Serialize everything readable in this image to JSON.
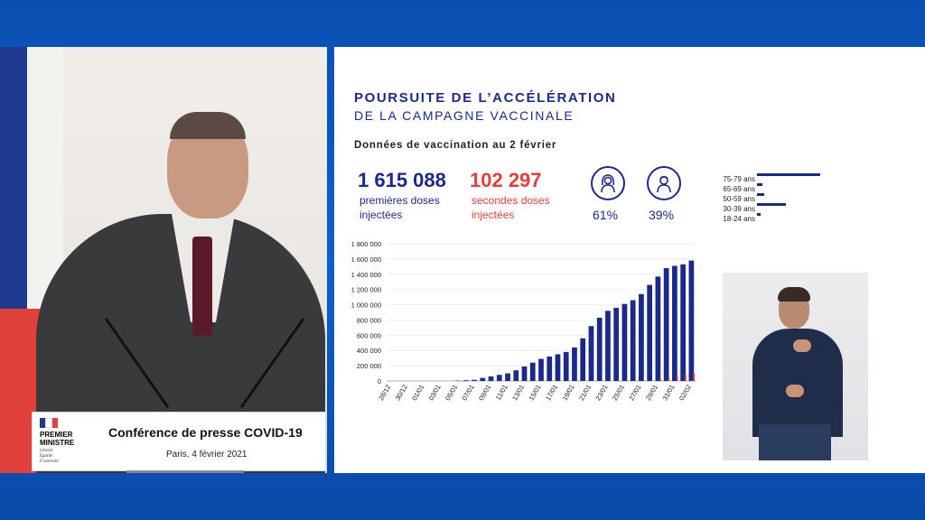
{
  "left_panel": {
    "logo": {
      "line1": "PREMIER",
      "line2": "MINISTRE",
      "motto1": "Liberté",
      "motto2": "Égalité",
      "motto3": "Fraternité"
    },
    "sign_title": "Conférence de presse COVID-19",
    "sign_subtitle": "Paris, 4 février 2021"
  },
  "slide": {
    "title_line1": "POURSUITE DE L’ACCÉLÉRATION",
    "title_line2": "DE LA CAMPAGNE VACCINALE",
    "subtitle": "Données de vaccination au 2 février",
    "first_doses": {
      "value": "1 615 088",
      "label": "premières doses injectées"
    },
    "second_doses": {
      "value": "102 297",
      "label": "secondes doses injectées"
    },
    "women_pct": "61%",
    "men_pct": "39%",
    "age_groups": [
      {
        "label": "75-79 ans",
        "value": 1.0
      },
      {
        "label": "65-69 ans",
        "value": 0.08
      },
      {
        "label": "50-59 ans",
        "value": 0.12
      },
      {
        "label": "30-39 ans",
        "value": 0.45
      },
      {
        "label": "18-24 ans",
        "value": 0.05
      }
    ]
  },
  "colors": {
    "navy": "#1b2a8a",
    "red": "#e1413a",
    "background_blue": "#0c5fd0"
  },
  "chart_data": {
    "type": "bar",
    "title": "",
    "xlabel": "",
    "ylabel": "",
    "ylim": [
      0,
      1800000
    ],
    "yticks": [
      "0",
      "200 000",
      "400 000",
      "600 000",
      "800 000",
      "1 000 000",
      "1 200 000",
      "1 400 000",
      "1 600 000",
      "1 800 000"
    ],
    "categories": [
      "28/12",
      "29/12",
      "30/12",
      "31/12",
      "01/01",
      "02/01",
      "03/01",
      "04/01",
      "05/01",
      "06/01",
      "07/01",
      "08/01",
      "09/01",
      "10/01",
      "11/01",
      "12/01",
      "13/01",
      "14/01",
      "15/01",
      "16/01",
      "17/01",
      "18/01",
      "19/01",
      "20/01",
      "21/01",
      "22/01",
      "23/01",
      "24/01",
      "25/01",
      "26/01",
      "27/01",
      "28/01",
      "29/01",
      "30/01",
      "31/01",
      "01/02",
      "02/02"
    ],
    "labeled_ticks": [
      "28/12",
      "30/12",
      "01/01",
      "03/01",
      "05/01",
      "07/01",
      "09/01",
      "11/01",
      "13/01",
      "15/01",
      "17/01",
      "19/01",
      "21/01",
      "23/01",
      "25/01",
      "27/01",
      "29/01",
      "31/01",
      "02/02"
    ],
    "series": [
      {
        "name": "",
        "color": "#1b2a8a",
        "values": [
          0,
          0,
          0,
          0,
          0,
          0,
          0,
          0,
          5000,
          10000,
          15000,
          40000,
          60000,
          80000,
          100000,
          140000,
          190000,
          240000,
          290000,
          320000,
          350000,
          380000,
          440000,
          560000,
          720000,
          830000,
          920000,
          960000,
          1010000,
          1060000,
          1140000,
          1260000,
          1370000,
          1480000,
          1510000,
          1530000,
          1580000
        ]
      },
      {
        "name": "",
        "color": "#e1413a",
        "values": [
          0,
          0,
          0,
          0,
          0,
          0,
          0,
          0,
          0,
          0,
          0,
          0,
          0,
          0,
          0,
          0,
          0,
          0,
          0,
          0,
          0,
          0,
          0,
          0,
          0,
          0,
          0,
          0,
          0,
          0,
          0,
          0,
          20000,
          40000,
          60000,
          80000,
          102297
        ]
      }
    ],
    "grid": true
  }
}
